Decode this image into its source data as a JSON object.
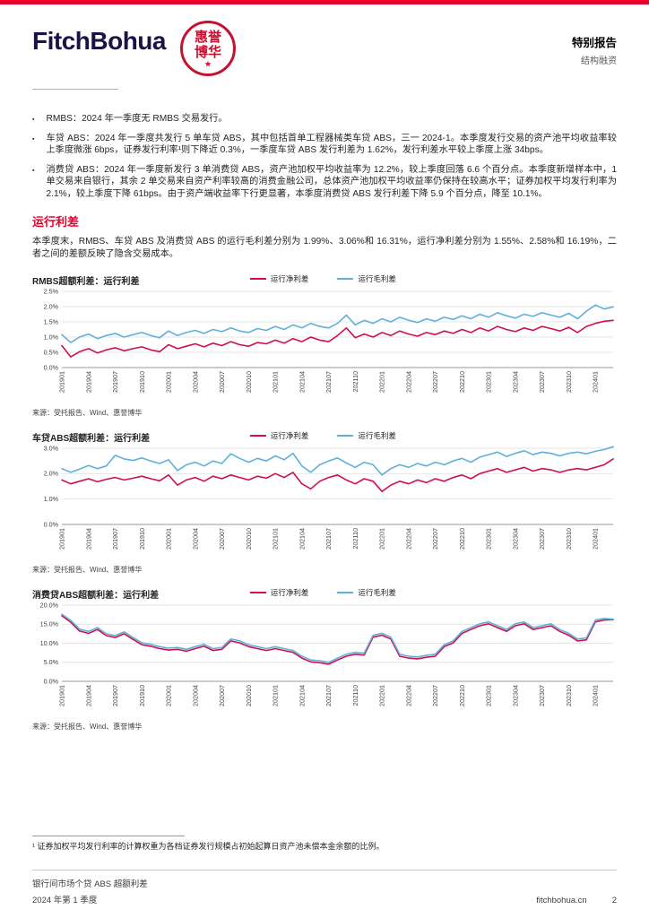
{
  "header": {
    "logo_text": "FitchBohua",
    "seal_line1": "惠誉",
    "seal_line2": "博华",
    "seal_star": "★",
    "report_type": "特别报告",
    "report_subtype": "结构融资"
  },
  "bullets": [
    {
      "text": "RMBS：2024 年一季度无 RMBS 交易发行。"
    },
    {
      "text": "车贷 ABS：2024 年一季度共发行 5 单车贷 ABS，其中包括首单工程器械类车贷 ABS，三一 2024-1。本季度发行交易的资产池平均收益率较上季度微涨 6bps，证券发行利率¹则下降近 0.3%，一季度车贷 ABS 发行利差为 1.62%，发行利差水平较上季度上涨 34bps。"
    },
    {
      "text": "消费贷 ABS：2024 年一季度新发行 3 单消费贷 ABS，资产池加权平均收益率为 12.2%，较上季度回落 6.6 个百分点。本季度新增样本中，1 单交易来自银行，其余 2 单交易来自资产利率较高的消费金融公司，总体资产池加权平均收益率仍保持在较高水平；证券加权平均发行利率为 2.1%，较上季度下降 61bps。由于资产端收益率下行更显著，本季度消费贷 ABS 发行利差下降 5.9 个百分点，降至 10.1%。"
    }
  ],
  "section": {
    "title": "运行利差",
    "paragraph": "本季度末，RMBS、车贷 ABS 及消费贷 ABS 的运行毛利差分别为 1.99%、3.06%和 16.31%，运行净利差分别为 1.55%、2.58%和 16.19%，二者之间的差额反映了隐含交易成本。"
  },
  "colors": {
    "accent_red": "#e4002b",
    "logo_navy": "#1a1446",
    "seal_red": "#c41230",
    "net_line": "#d0104c",
    "gross_line": "#5fb0dd"
  },
  "chart_data": [
    {
      "type": "line",
      "title": "RMBS超额利差：运行利差",
      "source": "来源：受托报告、Wind、惠誉博华",
      "y_axis": {
        "min": 0.0,
        "max": 2.5,
        "step": 0.5,
        "unit": "%"
      },
      "x_tick_step": 3,
      "x_labels": [
        "201901",
        "201904",
        "201907",
        "201910",
        "202001",
        "202004",
        "202007",
        "202010",
        "202101",
        "202104",
        "202107",
        "202110",
        "202201",
        "202204",
        "202207",
        "202210",
        "202301",
        "202304",
        "202307",
        "202310",
        "202401"
      ],
      "series": [
        {
          "name": "运行净利差",
          "color": "#d0104c",
          "values": [
            0.72,
            0.35,
            0.52,
            0.62,
            0.48,
            0.58,
            0.65,
            0.55,
            0.62,
            0.68,
            0.58,
            0.52,
            0.75,
            0.62,
            0.7,
            0.78,
            0.68,
            0.8,
            0.72,
            0.85,
            0.75,
            0.7,
            0.82,
            0.78,
            0.9,
            0.8,
            0.95,
            0.85,
            1.0,
            0.9,
            0.85,
            1.05,
            1.3,
            0.98,
            1.1,
            1.0,
            1.15,
            1.05,
            1.2,
            1.1,
            1.03,
            1.15,
            1.08,
            1.2,
            1.12,
            1.25,
            1.15,
            1.3,
            1.2,
            1.35,
            1.25,
            1.18,
            1.3,
            1.22,
            1.35,
            1.28,
            1.2,
            1.32,
            1.15,
            1.35,
            1.45,
            1.52,
            1.55
          ]
        },
        {
          "name": "运行毛利差",
          "color": "#5fb0dd",
          "values": [
            1.08,
            0.82,
            1.0,
            1.1,
            0.95,
            1.05,
            1.12,
            1.0,
            1.08,
            1.15,
            1.05,
            0.98,
            1.2,
            1.05,
            1.15,
            1.22,
            1.12,
            1.25,
            1.18,
            1.3,
            1.2,
            1.15,
            1.28,
            1.22,
            1.35,
            1.25,
            1.4,
            1.3,
            1.45,
            1.35,
            1.3,
            1.45,
            1.72,
            1.4,
            1.55,
            1.45,
            1.6,
            1.5,
            1.65,
            1.55,
            1.48,
            1.6,
            1.52,
            1.65,
            1.58,
            1.7,
            1.6,
            1.75,
            1.65,
            1.8,
            1.7,
            1.62,
            1.75,
            1.68,
            1.8,
            1.72,
            1.65,
            1.78,
            1.6,
            1.85,
            2.05,
            1.92,
            1.99
          ]
        }
      ]
    },
    {
      "type": "line",
      "title": "车贷ABS超额利差：运行利差",
      "source": "来源：受托报告、Wind、惠誉博华",
      "y_axis": {
        "min": 0.0,
        "max": 3.0,
        "step": 1.0,
        "unit": "%"
      },
      "x_tick_step": 3,
      "x_labels": [
        "201901",
        "201904",
        "201907",
        "201910",
        "202001",
        "202004",
        "202007",
        "202010",
        "202101",
        "202104",
        "202107",
        "202110",
        "202201",
        "202204",
        "202207",
        "202210",
        "202301",
        "202304",
        "202307",
        "202310",
        "202401"
      ],
      "series": [
        {
          "name": "运行净利差",
          "color": "#d0104c",
          "values": [
            1.75,
            1.6,
            1.7,
            1.8,
            1.68,
            1.78,
            1.85,
            1.75,
            1.82,
            1.9,
            1.8,
            1.72,
            1.95,
            1.55,
            1.75,
            1.85,
            1.7,
            1.9,
            1.8,
            1.95,
            1.85,
            1.75,
            1.9,
            1.82,
            2.0,
            1.85,
            2.05,
            1.6,
            1.4,
            1.7,
            1.85,
            1.95,
            1.75,
            1.6,
            1.8,
            1.7,
            1.3,
            1.55,
            1.7,
            1.6,
            1.75,
            1.65,
            1.8,
            1.7,
            1.85,
            1.95,
            1.8,
            2.0,
            2.1,
            2.2,
            2.05,
            2.15,
            2.25,
            2.1,
            2.2,
            2.15,
            2.05,
            2.15,
            2.2,
            2.15,
            2.25,
            2.35,
            2.58
          ]
        },
        {
          "name": "运行毛利差",
          "color": "#5fb0dd",
          "values": [
            2.2,
            2.05,
            2.18,
            2.32,
            2.2,
            2.3,
            2.72,
            2.58,
            2.52,
            2.62,
            2.5,
            2.4,
            2.55,
            2.12,
            2.35,
            2.45,
            2.3,
            2.5,
            2.4,
            2.78,
            2.6,
            2.45,
            2.6,
            2.5,
            2.7,
            2.55,
            2.8,
            2.3,
            2.05,
            2.35,
            2.5,
            2.62,
            2.42,
            2.25,
            2.45,
            2.35,
            1.95,
            2.2,
            2.35,
            2.25,
            2.4,
            2.3,
            2.45,
            2.35,
            2.5,
            2.6,
            2.45,
            2.65,
            2.75,
            2.85,
            2.68,
            2.8,
            2.9,
            2.75,
            2.85,
            2.8,
            2.7,
            2.8,
            2.85,
            2.78,
            2.88,
            2.95,
            3.06
          ]
        }
      ]
    },
    {
      "type": "line",
      "title": "消费贷ABS超额利差：运行利差",
      "source": "来源：受托报告、Wind、惠誉博华",
      "y_axis": {
        "min": 0.0,
        "max": 20.0,
        "step": 5.0,
        "unit": "%"
      },
      "x_tick_step": 3,
      "x_labels": [
        "201901",
        "201904",
        "201907",
        "201910",
        "202001",
        "202004",
        "202007",
        "202010",
        "202101",
        "202104",
        "202107",
        "202110",
        "202201",
        "202204",
        "202207",
        "202210",
        "202301",
        "202304",
        "202307",
        "202310",
        "202401"
      ],
      "series": [
        {
          "name": "运行净利差",
          "color": "#d0104c",
          "values": [
            17.2,
            15.5,
            13.2,
            12.6,
            13.6,
            12.0,
            11.5,
            12.5,
            11.0,
            9.6,
            9.2,
            8.6,
            8.2,
            8.4,
            7.9,
            8.6,
            9.2,
            8.1,
            8.4,
            10.6,
            10.1,
            9.1,
            8.6,
            8.1,
            8.6,
            8.1,
            7.6,
            6.1,
            5.1,
            4.9,
            4.5,
            5.6,
            6.6,
            7.1,
            6.9,
            11.6,
            12.1,
            11.1,
            6.6,
            6.1,
            5.9,
            6.3,
            6.6,
            9.1,
            10.1,
            12.6,
            13.6,
            14.6,
            15.1,
            14.1,
            13.1,
            14.6,
            15.1,
            13.6,
            14.1,
            14.6,
            13.1,
            12.1,
            10.6,
            10.9,
            15.6,
            16.1,
            16.19
          ]
        },
        {
          "name": "运行毛利差",
          "color": "#5fb0dd",
          "values": [
            17.6,
            16.0,
            13.7,
            13.1,
            14.1,
            12.5,
            12.0,
            13.0,
            11.5,
            10.1,
            9.7,
            9.1,
            8.7,
            8.9,
            8.4,
            9.1,
            9.7,
            8.6,
            8.9,
            11.1,
            10.6,
            9.6,
            9.1,
            8.6,
            9.1,
            8.6,
            8.1,
            6.6,
            5.6,
            5.4,
            5.0,
            6.1,
            7.1,
            7.6,
            7.4,
            12.1,
            12.6,
            11.6,
            7.1,
            6.6,
            6.4,
            6.8,
            7.1,
            9.6,
            10.6,
            13.1,
            14.1,
            15.1,
            15.6,
            14.6,
            13.6,
            15.1,
            15.6,
            14.1,
            14.6,
            15.1,
            13.6,
            12.6,
            11.1,
            11.4,
            16.1,
            16.5,
            16.31
          ]
        }
      ]
    }
  ],
  "footnote": {
    "text": "¹ 证券加权平均发行利率的计算权重为各档证券发行规模占初始起算日资产池未偿本金余额的比例。"
  },
  "footer": {
    "report_title": "银行间市场个贷 ABS 超额利差",
    "period": "2024 年第 1 季度",
    "website": "fitchbohua.cn",
    "page": "2"
  }
}
